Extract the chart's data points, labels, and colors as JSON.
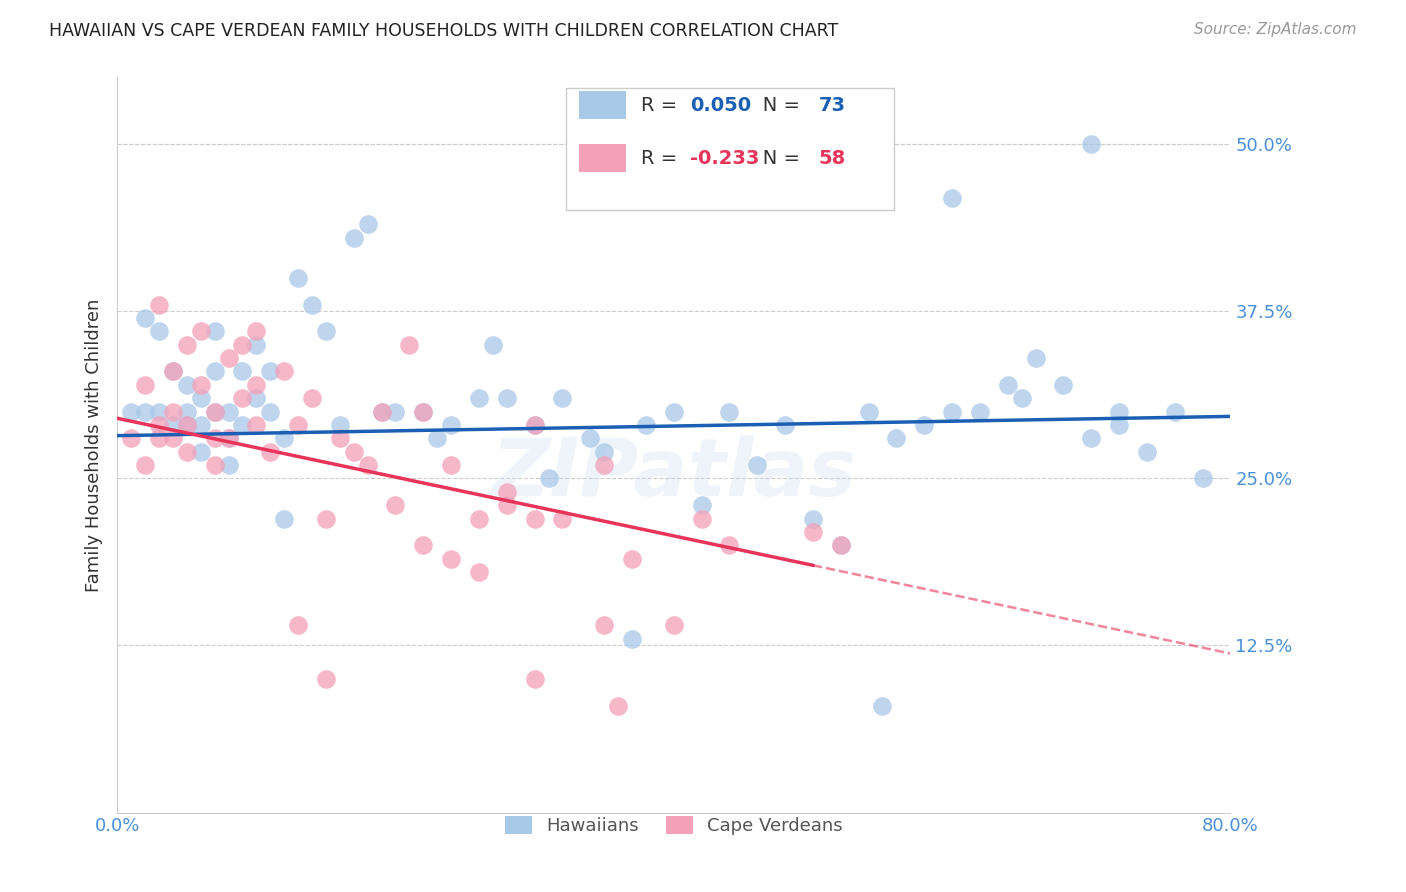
{
  "title": "HAWAIIAN VS CAPE VERDEAN FAMILY HOUSEHOLDS WITH CHILDREN CORRELATION CHART",
  "source": "Source: ZipAtlas.com",
  "ylabel": "Family Households with Children",
  "xlim": [
    0.0,
    0.8
  ],
  "ylim": [
    0.0,
    0.55
  ],
  "hawaiian_R": 0.05,
  "hawaiian_N": 73,
  "capeverdean_R": -0.233,
  "capeverdean_N": 58,
  "hawaiian_color": "#a8c8e8",
  "capeverdean_color": "#f4a0b8",
  "hawaiian_line_color": "#1a5fb4",
  "capeverdean_line_color": "#e8345a",
  "title_color": "#222222",
  "axis_label_color": "#4a90d9",
  "grid_color": "#cccccc",
  "watermark": "ZIPatlas",
  "hawaiian_x": [
    0.01,
    0.02,
    0.02,
    0.03,
    0.03,
    0.04,
    0.04,
    0.05,
    0.05,
    0.05,
    0.06,
    0.06,
    0.06,
    0.07,
    0.07,
    0.07,
    0.08,
    0.08,
    0.08,
    0.09,
    0.09,
    0.1,
    0.1,
    0.11,
    0.11,
    0.12,
    0.12,
    0.13,
    0.14,
    0.15,
    0.16,
    0.17,
    0.18,
    0.19,
    0.2,
    0.22,
    0.23,
    0.24,
    0.26,
    0.27,
    0.28,
    0.3,
    0.31,
    0.32,
    0.34,
    0.35,
    0.37,
    0.38,
    0.4,
    0.42,
    0.44,
    0.46,
    0.48,
    0.5,
    0.52,
    0.54,
    0.56,
    0.58,
    0.6,
    0.62,
    0.64,
    0.66,
    0.68,
    0.7,
    0.72,
    0.74,
    0.76,
    0.78,
    0.6,
    0.65,
    0.7,
    0.72,
    0.55
  ],
  "hawaiian_y": [
    0.3,
    0.37,
    0.3,
    0.36,
    0.3,
    0.33,
    0.29,
    0.3,
    0.29,
    0.32,
    0.31,
    0.29,
    0.27,
    0.3,
    0.33,
    0.36,
    0.3,
    0.28,
    0.26,
    0.33,
    0.29,
    0.31,
    0.35,
    0.3,
    0.33,
    0.22,
    0.28,
    0.4,
    0.38,
    0.36,
    0.29,
    0.43,
    0.44,
    0.3,
    0.3,
    0.3,
    0.28,
    0.29,
    0.31,
    0.35,
    0.31,
    0.29,
    0.25,
    0.31,
    0.28,
    0.27,
    0.13,
    0.29,
    0.3,
    0.23,
    0.3,
    0.26,
    0.29,
    0.22,
    0.2,
    0.3,
    0.28,
    0.29,
    0.46,
    0.3,
    0.32,
    0.34,
    0.32,
    0.5,
    0.3,
    0.27,
    0.3,
    0.25,
    0.3,
    0.31,
    0.28,
    0.29,
    0.08
  ],
  "capeverdean_x": [
    0.01,
    0.02,
    0.02,
    0.03,
    0.03,
    0.03,
    0.04,
    0.04,
    0.04,
    0.05,
    0.05,
    0.05,
    0.06,
    0.06,
    0.07,
    0.07,
    0.07,
    0.08,
    0.08,
    0.09,
    0.09,
    0.1,
    0.1,
    0.1,
    0.11,
    0.12,
    0.13,
    0.14,
    0.15,
    0.16,
    0.17,
    0.18,
    0.19,
    0.2,
    0.21,
    0.22,
    0.24,
    0.26,
    0.28,
    0.3,
    0.32,
    0.35,
    0.37,
    0.4,
    0.42,
    0.44,
    0.5,
    0.52,
    0.3,
    0.35,
    0.13,
    0.15,
    0.22,
    0.28,
    0.36,
    0.24,
    0.3,
    0.26
  ],
  "capeverdean_y": [
    0.28,
    0.32,
    0.26,
    0.38,
    0.28,
    0.29,
    0.33,
    0.28,
    0.3,
    0.29,
    0.27,
    0.35,
    0.32,
    0.36,
    0.3,
    0.28,
    0.26,
    0.34,
    0.28,
    0.35,
    0.31,
    0.29,
    0.32,
    0.36,
    0.27,
    0.33,
    0.29,
    0.31,
    0.22,
    0.28,
    0.27,
    0.26,
    0.3,
    0.23,
    0.35,
    0.3,
    0.26,
    0.22,
    0.24,
    0.22,
    0.22,
    0.14,
    0.19,
    0.14,
    0.22,
    0.2,
    0.21,
    0.2,
    0.29,
    0.26,
    0.14,
    0.1,
    0.2,
    0.23,
    0.08,
    0.19,
    0.1,
    0.18
  ]
}
